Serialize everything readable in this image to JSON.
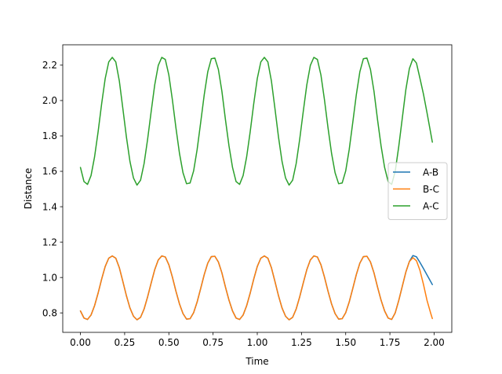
{
  "chart_data": {
    "type": "line",
    "title": "",
    "xlabel": "Time",
    "ylabel": "Distance",
    "xlim": [
      -0.1,
      2.1
    ],
    "ylim": [
      0.69,
      2.315
    ],
    "xticks": [
      0.0,
      0.25,
      0.5,
      0.75,
      1.0,
      1.25,
      1.5,
      1.75,
      2.0
    ],
    "xtick_labels": [
      "0.00",
      "0.25",
      "0.50",
      "0.75",
      "1.00",
      "1.25",
      "1.50",
      "1.75",
      "2.00"
    ],
    "yticks": [
      0.8,
      1.0,
      1.2,
      1.4,
      1.6,
      1.8,
      2.0,
      2.2
    ],
    "ytick_labels": [
      "0.8",
      "1.0",
      "1.2",
      "1.4",
      "1.6",
      "1.8",
      "2.0",
      "2.2"
    ],
    "grid": false,
    "legend": "center-right",
    "series": [
      {
        "name": "A-B",
        "color": "#1f77b4",
        "x": [
          0.0,
          0.02,
          0.04,
          0.06,
          0.08,
          0.1,
          0.12,
          0.14,
          0.16,
          0.18,
          0.2,
          0.22,
          0.24,
          0.26,
          0.28,
          0.3,
          0.32,
          0.34,
          0.36,
          0.38,
          0.4,
          0.42,
          0.44,
          0.46,
          0.48,
          0.5,
          0.52,
          0.54,
          0.56,
          0.58,
          0.6,
          0.62,
          0.64,
          0.66,
          0.68,
          0.7,
          0.72,
          0.74,
          0.76,
          0.78,
          0.8,
          0.82,
          0.84,
          0.86,
          0.88,
          0.9,
          0.92,
          0.94,
          0.96,
          0.98,
          1.0,
          1.02,
          1.04,
          1.06,
          1.08,
          1.1,
          1.12,
          1.14,
          1.16,
          1.18,
          1.2,
          1.22,
          1.24,
          1.26,
          1.28,
          1.3,
          1.32,
          1.34,
          1.36,
          1.38,
          1.4,
          1.42,
          1.44,
          1.46,
          1.48,
          1.5,
          1.52,
          1.54,
          1.56,
          1.58,
          1.6,
          1.62,
          1.64,
          1.66,
          1.68,
          1.7,
          1.72,
          1.74,
          1.76,
          1.78,
          1.8,
          1.82,
          1.84,
          1.86,
          1.88,
          1.9,
          1.92,
          1.94,
          1.96,
          1.98,
          1.99
        ],
        "y": [
          0.811,
          0.771,
          0.763,
          0.788,
          0.841,
          0.912,
          0.991,
          1.062,
          1.109,
          1.122,
          1.109,
          1.055,
          0.977,
          0.897,
          0.828,
          0.781,
          0.761,
          0.775,
          0.822,
          0.891,
          0.969,
          1.044,
          1.099,
          1.122,
          1.116,
          1.072,
          1.002,
          0.923,
          0.851,
          0.796,
          0.765,
          0.767,
          0.801,
          0.862,
          0.938,
          1.016,
          1.081,
          1.118,
          1.12,
          1.088,
          1.026,
          0.946,
          0.872,
          0.811,
          0.771,
          0.763,
          0.788,
          0.841,
          0.912,
          0.991,
          1.062,
          1.109,
          1.122,
          1.109,
          1.055,
          0.977,
          0.897,
          0.828,
          0.781,
          0.761,
          0.775,
          0.822,
          0.891,
          0.969,
          1.044,
          1.099,
          1.122,
          1.116,
          1.072,
          1.002,
          0.923,
          0.851,
          0.796,
          0.765,
          0.767,
          0.801,
          0.862,
          0.938,
          1.016,
          1.081,
          1.118,
          1.12,
          1.088,
          1.026,
          0.946,
          0.872,
          0.811,
          0.771,
          0.763,
          0.8,
          0.87,
          0.95,
          1.03,
          1.09,
          1.124,
          1.117,
          1.085,
          1.05,
          1.014,
          0.978,
          0.96
        ]
      },
      {
        "name": "B-C",
        "color": "#ff7f0e",
        "x": [
          0.0,
          0.02,
          0.04,
          0.06,
          0.08,
          0.1,
          0.12,
          0.14,
          0.16,
          0.18,
          0.2,
          0.22,
          0.24,
          0.26,
          0.28,
          0.3,
          0.32,
          0.34,
          0.36,
          0.38,
          0.4,
          0.42,
          0.44,
          0.46,
          0.48,
          0.5,
          0.52,
          0.54,
          0.56,
          0.58,
          0.6,
          0.62,
          0.64,
          0.66,
          0.68,
          0.7,
          0.72,
          0.74,
          0.76,
          0.78,
          0.8,
          0.82,
          0.84,
          0.86,
          0.88,
          0.9,
          0.92,
          0.94,
          0.96,
          0.98,
          1.0,
          1.02,
          1.04,
          1.06,
          1.08,
          1.1,
          1.12,
          1.14,
          1.16,
          1.18,
          1.2,
          1.22,
          1.24,
          1.26,
          1.28,
          1.3,
          1.32,
          1.34,
          1.36,
          1.38,
          1.4,
          1.42,
          1.44,
          1.46,
          1.48,
          1.5,
          1.52,
          1.54,
          1.56,
          1.58,
          1.6,
          1.62,
          1.64,
          1.66,
          1.68,
          1.7,
          1.72,
          1.74,
          1.76,
          1.78,
          1.8,
          1.82,
          1.84,
          1.86,
          1.88,
          1.9,
          1.92,
          1.94,
          1.96,
          1.98,
          1.99
        ],
        "y": [
          0.811,
          0.771,
          0.763,
          0.788,
          0.841,
          0.912,
          0.991,
          1.062,
          1.109,
          1.122,
          1.109,
          1.055,
          0.977,
          0.897,
          0.828,
          0.781,
          0.761,
          0.775,
          0.822,
          0.891,
          0.969,
          1.044,
          1.099,
          1.122,
          1.116,
          1.072,
          1.002,
          0.923,
          0.851,
          0.796,
          0.765,
          0.767,
          0.801,
          0.862,
          0.938,
          1.016,
          1.081,
          1.118,
          1.12,
          1.088,
          1.026,
          0.946,
          0.872,
          0.811,
          0.771,
          0.763,
          0.788,
          0.841,
          0.912,
          0.991,
          1.062,
          1.109,
          1.122,
          1.109,
          1.055,
          0.977,
          0.897,
          0.828,
          0.781,
          0.761,
          0.775,
          0.822,
          0.891,
          0.969,
          1.044,
          1.099,
          1.122,
          1.116,
          1.072,
          1.002,
          0.923,
          0.851,
          0.796,
          0.765,
          0.767,
          0.801,
          0.862,
          0.938,
          1.016,
          1.081,
          1.118,
          1.12,
          1.088,
          1.026,
          0.946,
          0.872,
          0.811,
          0.771,
          0.763,
          0.8,
          0.87,
          0.95,
          1.03,
          1.09,
          1.112,
          1.095,
          1.04,
          0.96,
          0.87,
          0.8,
          0.768
        ]
      },
      {
        "name": "A-C",
        "color": "#2ca02c",
        "x": [
          0.0,
          0.02,
          0.04,
          0.06,
          0.08,
          0.1,
          0.12,
          0.14,
          0.16,
          0.18,
          0.2,
          0.22,
          0.24,
          0.26,
          0.28,
          0.3,
          0.32,
          0.34,
          0.36,
          0.38,
          0.4,
          0.42,
          0.44,
          0.46,
          0.48,
          0.5,
          0.52,
          0.54,
          0.56,
          0.58,
          0.6,
          0.62,
          0.64,
          0.66,
          0.68,
          0.7,
          0.72,
          0.74,
          0.76,
          0.78,
          0.8,
          0.82,
          0.84,
          0.86,
          0.88,
          0.9,
          0.92,
          0.94,
          0.96,
          0.98,
          1.0,
          1.02,
          1.04,
          1.06,
          1.08,
          1.1,
          1.12,
          1.14,
          1.16,
          1.18,
          1.2,
          1.22,
          1.24,
          1.26,
          1.28,
          1.3,
          1.32,
          1.34,
          1.36,
          1.38,
          1.4,
          1.42,
          1.44,
          1.46,
          1.48,
          1.5,
          1.52,
          1.54,
          1.56,
          1.58,
          1.6,
          1.62,
          1.64,
          1.66,
          1.68,
          1.7,
          1.72,
          1.74,
          1.76,
          1.78,
          1.8,
          1.82,
          1.84,
          1.86,
          1.88,
          1.9,
          1.92,
          1.94,
          1.96,
          1.98,
          1.99
        ],
        "y": [
          1.622,
          1.542,
          1.526,
          1.576,
          1.682,
          1.824,
          1.982,
          2.124,
          2.218,
          2.244,
          2.218,
          2.11,
          1.954,
          1.794,
          1.656,
          1.562,
          1.522,
          1.55,
          1.644,
          1.782,
          1.938,
          2.088,
          2.198,
          2.244,
          2.232,
          2.144,
          2.004,
          1.846,
          1.702,
          1.592,
          1.53,
          1.534,
          1.602,
          1.724,
          1.876,
          2.032,
          2.162,
          2.236,
          2.24,
          2.176,
          2.052,
          1.892,
          1.744,
          1.622,
          1.542,
          1.526,
          1.576,
          1.682,
          1.824,
          1.982,
          2.124,
          2.218,
          2.244,
          2.218,
          2.11,
          1.954,
          1.794,
          1.656,
          1.562,
          1.522,
          1.55,
          1.644,
          1.782,
          1.938,
          2.088,
          2.198,
          2.244,
          2.232,
          2.144,
          2.004,
          1.846,
          1.702,
          1.592,
          1.53,
          1.534,
          1.602,
          1.724,
          1.876,
          2.032,
          2.162,
          2.236,
          2.24,
          2.176,
          2.052,
          1.892,
          1.744,
          1.622,
          1.542,
          1.526,
          1.6,
          1.74,
          1.9,
          2.06,
          2.18,
          2.236,
          2.212,
          2.125,
          2.035,
          1.93,
          1.82,
          1.765
        ]
      }
    ]
  }
}
